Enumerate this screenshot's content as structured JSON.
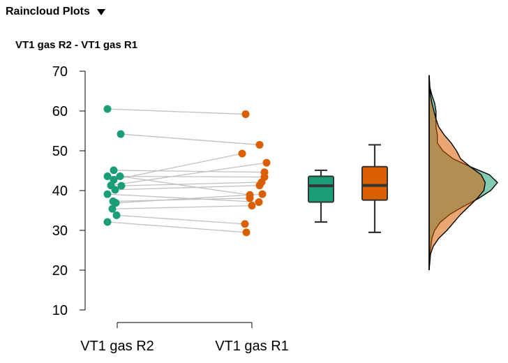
{
  "section": {
    "title": "Raincloud Plots",
    "toggle_icon": "caret-down-icon"
  },
  "plot": {
    "title": "VT1 gas R2 - VT1 gas R1"
  },
  "chart_data": {
    "type": "raincloud",
    "title": "VT1 gas R2 - VT1 gas R1",
    "ylim": [
      10,
      70
    ],
    "yticks": [
      10,
      20,
      30,
      40,
      50,
      60,
      70
    ],
    "ytick_labels": [
      "10",
      "20",
      "30",
      "40",
      "50",
      "60",
      "70"
    ],
    "categories": [
      "VT1 gas R2",
      "VT1 gas R1"
    ],
    "grid": false,
    "legend": "none",
    "colors": {
      "R2": "#1b9e77",
      "R1": "#d95f02",
      "line": "#c0c0c0"
    },
    "paired": [
      {
        "r2": 60.5,
        "r1": 59.2
      },
      {
        "r2": 54.2,
        "r1": 51.5
      },
      {
        "r2": 45.1,
        "r1": 44.6
      },
      {
        "r2": 43.6,
        "r1": 43.4
      },
      {
        "r2": 43.6,
        "r1": 38.9
      },
      {
        "r2": 42.7,
        "r1": 49.3
      },
      {
        "r2": 41.3,
        "r1": 47.0
      },
      {
        "r2": 41.2,
        "r1": 42.1
      },
      {
        "r2": 40.2,
        "r1": 41.3
      },
      {
        "r2": 39.1,
        "r1": 37.1
      },
      {
        "r2": 37.3,
        "r1": 38.1
      },
      {
        "r2": 36.9,
        "r1": 39.1
      },
      {
        "r2": 35.4,
        "r1": 36.2
      },
      {
        "r2": 33.8,
        "r1": 31.6
      },
      {
        "r2": 32.1,
        "r1": 29.5
      }
    ],
    "boxplots": [
      {
        "name": "VT1 gas R2",
        "min": 32.1,
        "q1": 37.1,
        "median": 41.2,
        "q3": 43.6,
        "max": 45.1
      },
      {
        "name": "VT1 gas R1",
        "min": 29.5,
        "q1": 37.6,
        "median": 41.3,
        "q3": 46.0,
        "max": 51.5
      }
    ],
    "density": {
      "R2": [
        [
          20,
          0
        ],
        [
          24,
          0.01
        ],
        [
          28,
          0.04
        ],
        [
          30,
          0.08
        ],
        [
          32,
          0.16
        ],
        [
          34,
          0.3
        ],
        [
          36,
          0.5
        ],
        [
          38,
          0.72
        ],
        [
          40,
          0.9
        ],
        [
          42,
          1.0
        ],
        [
          44,
          0.88
        ],
        [
          46,
          0.6
        ],
        [
          48,
          0.35
        ],
        [
          50,
          0.2
        ],
        [
          52,
          0.12
        ],
        [
          54,
          0.12
        ],
        [
          56,
          0.1
        ],
        [
          58,
          0.1
        ],
        [
          60,
          0.1
        ],
        [
          62,
          0.08
        ],
        [
          64,
          0.04
        ],
        [
          66,
          0.01
        ],
        [
          69,
          0
        ]
      ],
      "R1": [
        [
          20,
          0
        ],
        [
          24,
          0.02
        ],
        [
          26,
          0.06
        ],
        [
          28,
          0.14
        ],
        [
          30,
          0.26
        ],
        [
          32,
          0.36
        ],
        [
          34,
          0.46
        ],
        [
          36,
          0.58
        ],
        [
          38,
          0.7
        ],
        [
          40,
          0.8
        ],
        [
          42,
          0.82
        ],
        [
          44,
          0.76
        ],
        [
          46,
          0.6
        ],
        [
          48,
          0.46
        ],
        [
          50,
          0.4
        ],
        [
          52,
          0.32
        ],
        [
          54,
          0.22
        ],
        [
          56,
          0.14
        ],
        [
          58,
          0.1
        ],
        [
          60,
          0.07
        ],
        [
          62,
          0.04
        ],
        [
          64,
          0.02
        ],
        [
          66,
          0.01
        ],
        [
          69,
          0
        ]
      ]
    }
  }
}
